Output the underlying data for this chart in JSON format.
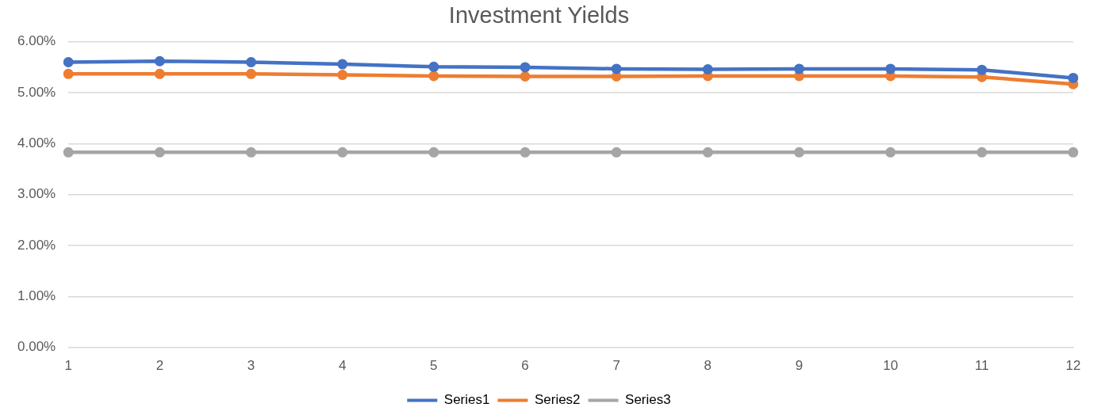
{
  "chart_data": {
    "type": "line",
    "title": "Investment Yields",
    "categories": [
      "1",
      "2",
      "3",
      "4",
      "5",
      "6",
      "7",
      "8",
      "9",
      "10",
      "11",
      "12"
    ],
    "series": [
      {
        "name": "Series1",
        "color": "#4472c4",
        "values": [
          5.6,
          5.62,
          5.6,
          5.56,
          5.51,
          5.5,
          5.47,
          5.46,
          5.47,
          5.47,
          5.45,
          5.29
        ]
      },
      {
        "name": "Series2",
        "color": "#ed7d31",
        "values": [
          5.37,
          5.37,
          5.37,
          5.35,
          5.33,
          5.32,
          5.32,
          5.33,
          5.33,
          5.33,
          5.31,
          5.17
        ]
      },
      {
        "name": "Series3",
        "color": "#a5a5a5",
        "values": [
          3.83,
          3.83,
          3.83,
          3.83,
          3.83,
          3.83,
          3.83,
          3.83,
          3.83,
          3.83,
          3.83,
          3.83
        ]
      }
    ],
    "ylim": [
      0,
      6
    ],
    "yticks": [
      {
        "value": 0,
        "label": "0.00%"
      },
      {
        "value": 1,
        "label": "1.00%"
      },
      {
        "value": 2,
        "label": "2.00%"
      },
      {
        "value": 3,
        "label": "3.00%"
      },
      {
        "value": 4,
        "label": "4.00%"
      },
      {
        "value": 5,
        "label": "5.00%"
      },
      {
        "value": 6,
        "label": "6.00%"
      }
    ],
    "grid": "y",
    "legend": "bottom",
    "marker": "circle",
    "line_style": "solid"
  }
}
